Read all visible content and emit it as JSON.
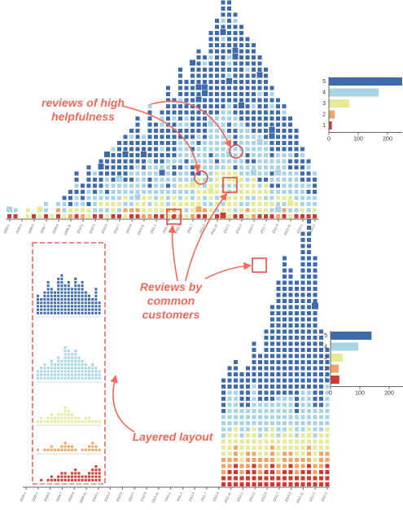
{
  "annotations": {
    "helpfulness": [
      "reviews of high",
      "helpfulness"
    ],
    "common_customers": [
      "Reviews by",
      "common",
      "customers"
    ],
    "layered": "Layered layout"
  },
  "colors": {
    "5": "#3d6aab",
    "4": "#a8d4e6",
    "3": "#e6ea96",
    "2": "#f2a462",
    "1": "#cf3a30",
    "accent": "#f06a5a",
    "axis": "#666666"
  },
  "chart_data": [
    {
      "type": "heatmap",
      "title": "",
      "description_kind": "stacked unit-square histogram of reviews over time",
      "x_tick_labels": [
        "2009.1",
        "2009.2",
        "2009.3",
        "2009.4",
        "2009.5",
        "2009.6",
        "2009.7",
        "2009.8",
        "2009.9",
        "2009.10",
        "2009.11",
        "2009.12",
        "2010.1",
        "2010.2",
        "2010.3",
        "2010.4",
        "2010.5",
        "2010.6",
        "2010.7",
        "2010.8",
        "2010.9",
        "2010.10",
        "2010.11",
        "2010.12",
        "2011.1",
        "2011.2",
        "2011.3",
        "2011.4",
        "2011.5",
        "2011.6",
        "2011.7",
        "2011.8",
        "2011.9",
        "2011.10",
        "2011.11",
        "2011.12",
        "2012.1",
        "2012.2",
        "2012.3",
        "2012.4",
        "2012.5",
        "2012.6",
        "2012.7",
        "2012.8",
        "2012.9",
        "2012.10",
        "2012.11",
        "2012.12",
        "2013.1",
        "2013.2",
        "2013.3"
      ],
      "rating_counts_per_column": [
        2,
        2,
        0,
        2,
        1,
        2,
        3,
        1,
        3,
        4,
        5,
        8,
        6,
        9,
        8,
        10,
        11,
        12,
        13,
        14,
        15,
        17,
        14,
        19,
        16,
        18,
        22,
        20,
        25,
        23,
        26,
        28,
        27,
        31,
        33,
        36,
        38,
        34,
        32,
        30,
        29,
        27,
        25,
        22,
        20,
        19,
        17,
        15,
        12,
        10,
        8
      ]
    },
    {
      "type": "heatmap",
      "title": "",
      "description_kind": "layered unit-square histogram of reviews over time",
      "x_tick_labels": [
        "2009.1",
        "2009.2",
        "2009.3",
        "2009.4",
        "2009.5",
        "2009.6",
        "2009.7",
        "2009.8",
        "2009.9",
        "2009.10",
        "2009.11",
        "2009.12",
        "2010.1",
        "2010.2",
        "2010.3",
        "2010.4",
        "2010.5",
        "2010.6",
        "2010.7",
        "2010.8",
        "2010.9",
        "2010.10",
        "2010.11",
        "2010.12",
        "2011.1",
        "2011.2",
        "2011.3",
        "2011.4",
        "2011.5",
        "2011.6",
        "2011.7",
        "2011.8",
        "2011.9",
        "2011.10",
        "2011.11",
        "2011.12",
        "2012.1",
        "2012.2",
        "2012.3",
        "2012.4",
        "2012.5",
        "2012.6",
        "2012.7",
        "2012.8",
        "2012.9",
        "2012.10",
        "2012.11",
        "2012.12",
        "2013.1",
        "2013.2",
        "2013.3"
      ]
    },
    {
      "type": "bar",
      "orientation": "horizontal",
      "categories": [
        "5",
        "4",
        "3",
        "2",
        "1"
      ],
      "values": [
        250,
        170,
        70,
        20,
        10
      ],
      "xlim": [
        0,
        250
      ],
      "x_ticks": [
        "0",
        "100",
        "200"
      ]
    },
    {
      "type": "bar",
      "orientation": "horizontal",
      "categories": [
        "5",
        "4",
        "3",
        "2",
        "1"
      ],
      "values": [
        140,
        95,
        42,
        28,
        30
      ],
      "xlim": [
        0,
        250
      ],
      "x_ticks": [
        "0",
        "100",
        "200"
      ]
    }
  ]
}
